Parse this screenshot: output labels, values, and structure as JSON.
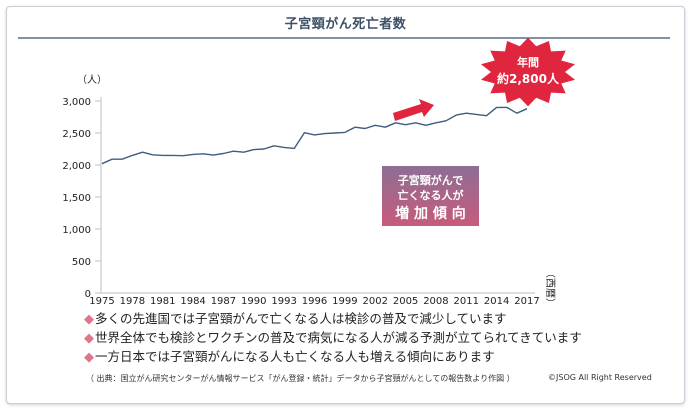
{
  "title": "子宮頸がん死亡者数",
  "unit_label": "（人）",
  "era_label": "（西暦）",
  "badge": {
    "line1": "年間",
    "line2": "約2,800人"
  },
  "callout": {
    "line1": "子宮頸がんで",
    "line2": "亡くなる人が",
    "line3": "増 加 傾 向"
  },
  "notes": [
    "多くの先進国では子宮頸がんで亡くなる人は検診の普及で減少しています",
    "世界全体でも検診とワクチンの普及で病気になる人が減る予測が立てられてきています",
    "一方日本では子宮頸がんになる人も亡くなる人も増える傾向にあります"
  ],
  "note_marker": "◆",
  "source": "（ 出典：国立がん研究センターがん情報サービス「がん登録・統計」データから子宮頸がんとしての報告数より作図 ）",
  "copyright": "©JSOG All Right Reserved",
  "colors": {
    "line": "#3f5e7c",
    "axis": "#b8c2cc",
    "badge": "#e0263e",
    "arrow": "#e0263e",
    "callout_top": "#8e6e94",
    "callout_bottom": "#c65b7c"
  },
  "chart_data": {
    "type": "line",
    "title": "子宮頸がん死亡者数",
    "ylabel": "（人）",
    "xlabel": "（西暦）",
    "ylim": [
      0,
      3000
    ],
    "xlim": [
      1975,
      2017
    ],
    "yticks": [
      0,
      500,
      1000,
      1500,
      2000,
      2500,
      3000
    ],
    "ytick_labels": [
      "0",
      "500",
      "1,000",
      "1,500",
      "2,000",
      "2,500",
      "3,000"
    ],
    "xticks": [
      1975,
      1978,
      1981,
      1984,
      1987,
      1990,
      1993,
      1996,
      1999,
      2002,
      2005,
      2008,
      2011,
      2014,
      2017
    ],
    "x": [
      1975,
      1976,
      1977,
      1978,
      1979,
      1980,
      1981,
      1982,
      1983,
      1984,
      1985,
      1986,
      1987,
      1988,
      1989,
      1990,
      1991,
      1992,
      1993,
      1994,
      1995,
      1996,
      1997,
      1998,
      1999,
      2000,
      2001,
      2002,
      2003,
      2004,
      2005,
      2006,
      2007,
      2008,
      2009,
      2010,
      2011,
      2012,
      2013,
      2014,
      2015,
      2016,
      2017
    ],
    "y": [
      2020,
      2090,
      2090,
      2150,
      2200,
      2160,
      2150,
      2150,
      2145,
      2165,
      2175,
      2155,
      2180,
      2215,
      2200,
      2240,
      2250,
      2300,
      2275,
      2260,
      2505,
      2470,
      2490,
      2500,
      2510,
      2590,
      2570,
      2620,
      2590,
      2660,
      2630,
      2660,
      2620,
      2660,
      2690,
      2780,
      2810,
      2790,
      2770,
      2900,
      2900,
      2810,
      2880
    ],
    "grid": false,
    "legend": "none"
  }
}
